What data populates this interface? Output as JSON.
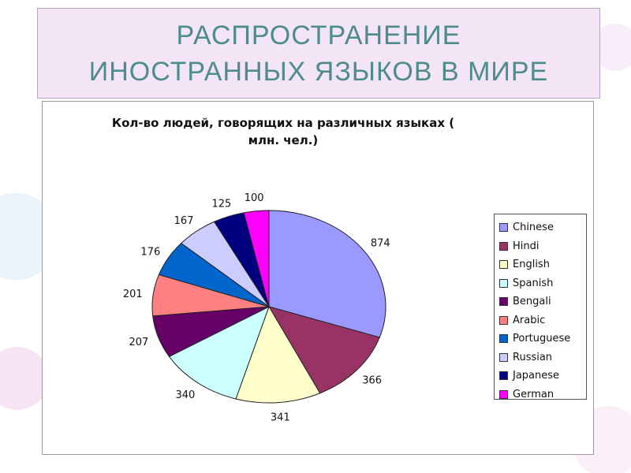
{
  "slide": {
    "title_line1": "РАСПРОСТРАНЕНИЕ",
    "title_line2": "ИНОСТРАННЫХ ЯЗЫКОВ В МИРЕ"
  },
  "chart_data": {
    "type": "pie",
    "title_line1": "Кол-во людей, говорящих на различных языках (",
    "title_line2": "млн. чел.)",
    "categories": [
      "Chinese",
      "Hindi",
      "English",
      "Spanish",
      "Bengali",
      "Arabic",
      "Portuguese",
      "Russian",
      "Japanese",
      "German"
    ],
    "values": [
      874,
      366,
      341,
      340,
      207,
      201,
      176,
      167,
      125,
      100
    ],
    "colors": [
      "#9999ff",
      "#993366",
      "#ffffcc",
      "#ccffff",
      "#660066",
      "#ff8080",
      "#0066cc",
      "#ccccff",
      "#000080",
      "#ff00ff"
    ],
    "legend_position": "right"
  }
}
